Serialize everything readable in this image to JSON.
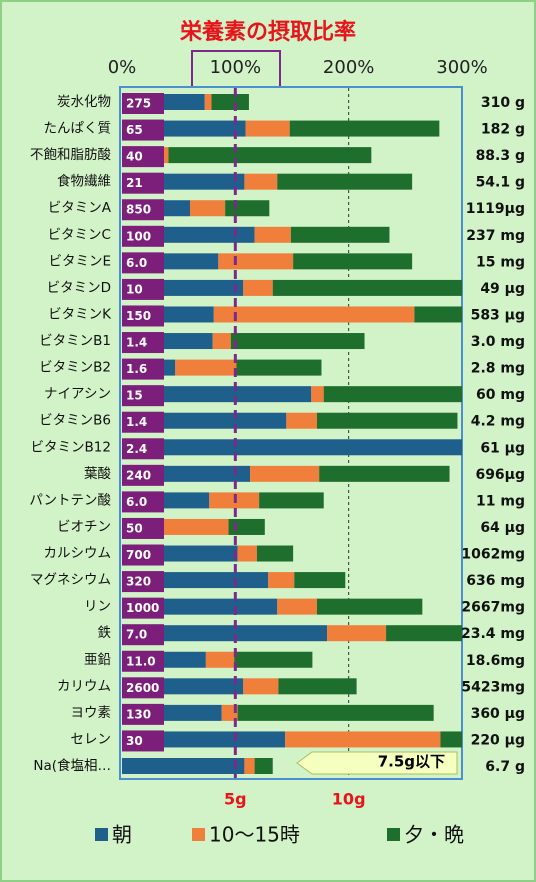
{
  "chart_data": {
    "type": "stacked_bar_horizontal",
    "title": "栄養素の摂取比率",
    "categories": [
      "炭水化物",
      "たんぱく質",
      "不飽和脂肪酸",
      "食物繊維",
      "ビタミンA",
      "ビタミンC",
      "ビタミンE",
      "ビタミンD",
      "ビタミンK",
      "ビタミンB1",
      "ビタミンB2",
      "ナイアシン",
      "ビタミンB6",
      "ビタミンB12",
      "葉酸",
      "パントテン酸",
      "ビオチン",
      "カルシウム",
      "マグネシウム",
      "リン",
      "鉄",
      "亜鉛",
      "カリウム",
      "ヨウ素",
      "セレン",
      "Na(食塩相…"
    ],
    "reference_amounts": [
      "275",
      "65",
      "40",
      "21",
      "850",
      "100",
      "6.0",
      "10",
      "150",
      "1.4",
      "1.6",
      "15",
      "1.4",
      "2.4",
      "240",
      "6.0",
      "50",
      "700",
      "320",
      "1000",
      "7.0",
      "11.0",
      "2600",
      "130",
      "30",
      null
    ],
    "amounts": [
      "310 g",
      "182 g",
      "88.3 g",
      "54.1 g",
      "1119μg",
      "237 mg",
      "15 mg",
      "49 μg",
      "583 μg",
      "3.0 mg",
      "2.8 mg",
      "60 mg",
      "4.2 mg",
      "61 μg",
      "696μg",
      "11 mg",
      "64 μg",
      "1062mg",
      "636 mg",
      "2667mg",
      "23.4 mg",
      "18.6mg",
      "5423mg",
      "360 μg",
      "220 μg",
      "6.7 g"
    ],
    "series": [
      {
        "name": "朝",
        "color": "#1f5f8b",
        "values": [
          73,
          109,
          36,
          108,
          60,
          117,
          85,
          107,
          81,
          80,
          47,
          167,
          145,
          300,
          113,
          77,
          37,
          102,
          129,
          137,
          181,
          74,
          107,
          88,
          144,
          108
        ]
      },
      {
        "name": "10〜15時",
        "color": "#f07f3c",
        "values": [
          6,
          39,
          5,
          29,
          31,
          32,
          66,
          26,
          177,
          16,
          54,
          11,
          27,
          0,
          61,
          44,
          57,
          17,
          23,
          35,
          52,
          25,
          31,
          14,
          137,
          9
        ]
      },
      {
        "name": "夕・晩",
        "color": "#1e6e2e",
        "values": [
          33,
          132,
          179,
          119,
          39,
          87,
          105,
          167,
          42,
          118,
          75,
          122,
          124,
          0,
          115,
          57,
          32,
          32,
          45,
          93,
          67,
          69,
          69,
          173,
          19,
          16
        ]
      }
    ],
    "xlim": [
      0,
      300
    ],
    "xticks": [
      {
        "value": 0,
        "label": "0%"
      },
      {
        "value": 100,
        "label": "100%"
      },
      {
        "value": 200,
        "label": "200%"
      },
      {
        "value": 300,
        "label": "300%"
      }
    ],
    "reference_line": 100,
    "sodium_ticks": [
      {
        "value": 100,
        "label": "5g"
      },
      {
        "value": 200,
        "label": "10g"
      }
    ],
    "annotation": "7.5g以下"
  }
}
